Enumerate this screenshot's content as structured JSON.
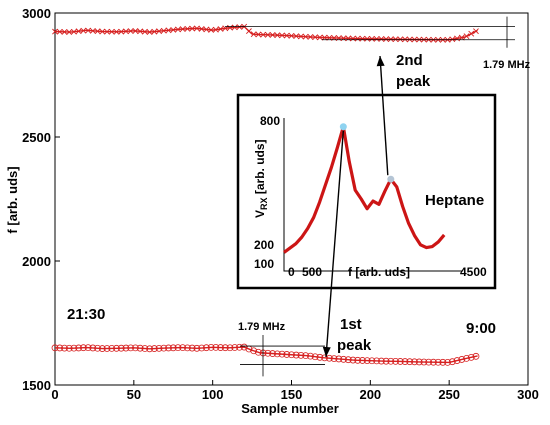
{
  "chart_data": {
    "type": "scatter",
    "xlabel": "Sample number",
    "ylabel": "f [arb. uds]",
    "xlim": [
      0,
      300
    ],
    "ylim": [
      1500,
      3000
    ],
    "xticks": [
      0,
      50,
      100,
      150,
      200,
      250,
      300
    ],
    "yticks": [
      1500,
      2000,
      2500,
      3000
    ],
    "grid": false,
    "series": [
      {
        "marker": "x",
        "color": "#d62020",
        "x": [
          0,
          10,
          20,
          30,
          40,
          50,
          60,
          70,
          80,
          90,
          100,
          110,
          120,
          125,
          130,
          140,
          150,
          160,
          170,
          180,
          190,
          200,
          210,
          220,
          230,
          240,
          250,
          260,
          268
        ],
        "y": [
          2925,
          2923,
          2930,
          2925,
          2924,
          2928,
          2923,
          2929,
          2935,
          2938,
          2931,
          2940,
          2945,
          2915,
          2913,
          2911,
          2908,
          2904,
          2901,
          2899,
          2897,
          2896,
          2895,
          2894,
          2893,
          2892,
          2892,
          2903,
          2930
        ]
      },
      {
        "marker": "o",
        "color": "#d62020",
        "x": [
          0,
          10,
          20,
          30,
          40,
          50,
          60,
          70,
          80,
          90,
          100,
          110,
          120,
          125,
          130,
          140,
          150,
          160,
          170,
          180,
          190,
          200,
          210,
          220,
          230,
          240,
          250,
          260,
          268
        ],
        "y": [
          1650,
          1648,
          1651,
          1647,
          1648,
          1650,
          1646,
          1649,
          1651,
          1648,
          1652,
          1650,
          1653,
          1640,
          1630,
          1626,
          1622,
          1618,
          1610,
          1605,
          1600,
          1598,
          1596,
          1595,
          1593,
          1592,
          1591,
          1606,
          1617
        ]
      }
    ],
    "annotations": {
      "start_time": "21:30",
      "end_time": "9:00",
      "shift_top": "1.79 MHz",
      "shift_bottom": "1.79 MHz",
      "peak1": [
        "1st",
        "peak"
      ],
      "peak2": [
        "2nd",
        "peak"
      ]
    },
    "inset": {
      "type": "line",
      "xlabel": "f [arb. uds]",
      "ylabel_main": "V",
      "ylabel_sub": "RX",
      "ylabel_rest": " [arb. uds]",
      "xlim": [
        0,
        4500
      ],
      "ylim": [
        100,
        800
      ],
      "xtick_labels": [
        "0",
        "500",
        "4500"
      ],
      "ytick_labels": [
        "800",
        "200",
        "100"
      ],
      "label": "Heptane",
      "color": "#cc1515",
      "x": [
        0,
        150,
        300,
        450,
        600,
        750,
        900,
        1050,
        1200,
        1350,
        1500,
        1650,
        1800,
        1950,
        2100,
        2250,
        2400,
        2550,
        2700,
        2850,
        3000,
        3150,
        3300,
        3450,
        3600,
        3750,
        3900,
        4050
      ],
      "y": [
        185,
        205,
        225,
        255,
        295,
        345,
        415,
        495,
        575,
        665,
        760,
        600,
        470,
        430,
        385,
        420,
        405,
        465,
        520,
        485,
        395,
        318,
        262,
        220,
        207,
        212,
        233,
        265
      ]
    }
  }
}
